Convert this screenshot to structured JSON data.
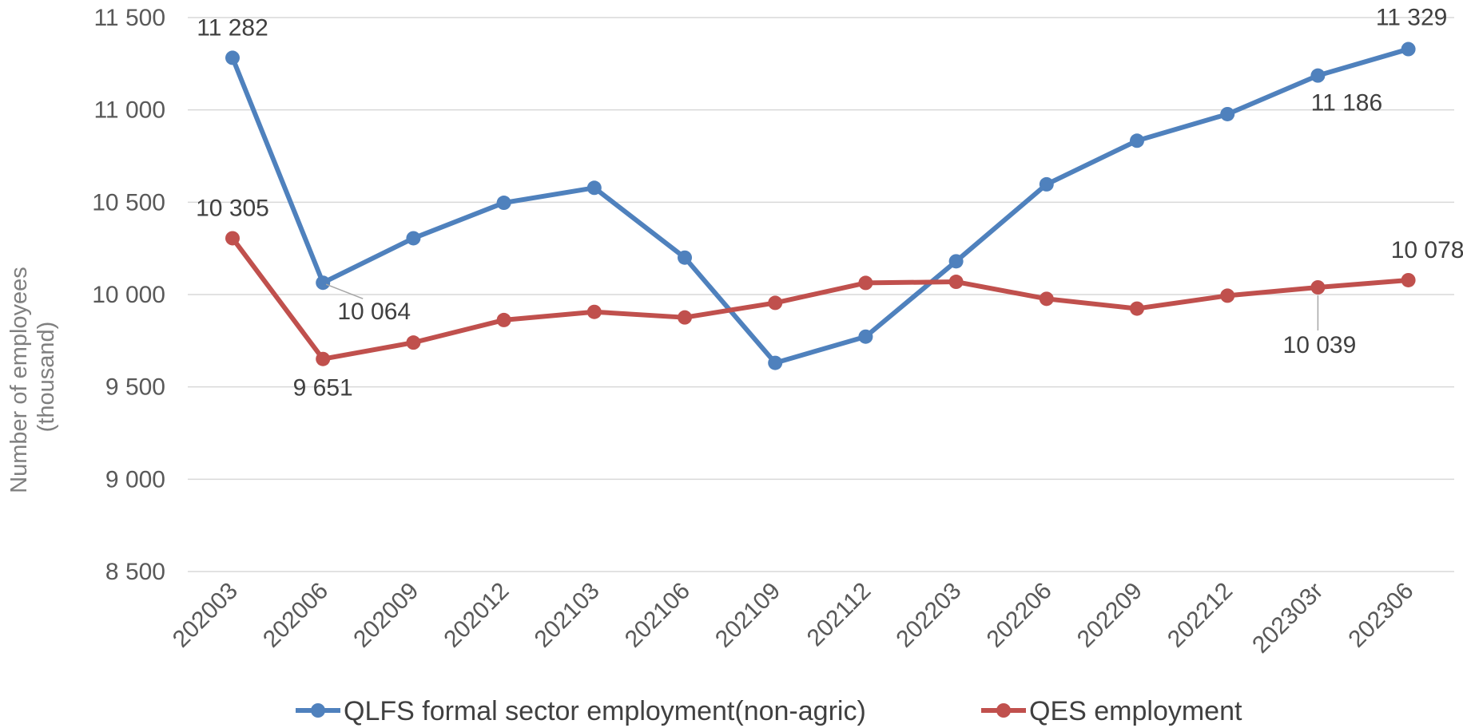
{
  "chart_data": {
    "type": "line",
    "ylabel_lines": [
      "Number of employees",
      "(thousand)"
    ],
    "ylim": [
      8500,
      11500
    ],
    "yticks": [
      8500,
      9000,
      9500,
      10000,
      10500,
      11000,
      11500
    ],
    "ytick_labels": [
      "8 500",
      "9 000",
      "9 500",
      "10 000",
      "10 500",
      "11 000",
      "11 500"
    ],
    "grid": "horizontal",
    "legend": "bottom",
    "categories": [
      "202003",
      "202006",
      "202009",
      "202012",
      "202103",
      "202106",
      "202109",
      "202112",
      "202203",
      "202206",
      "202209",
      "202212",
      "202303r",
      "202306"
    ],
    "series": [
      {
        "name": "QLFS formal sector employment(non-agric)",
        "color": "#4F81BD",
        "values": [
          11282,
          10064,
          10305,
          10497,
          10578,
          10200,
          9630,
          9772,
          10180,
          10597,
          10833,
          10977,
          11186,
          11329
        ],
        "labels": [
          {
            "index": 0,
            "text": "11 282"
          },
          {
            "index": 1,
            "text": "10 064"
          },
          {
            "index": 12,
            "text": "11 186"
          },
          {
            "index": 13,
            "text": "11 329"
          }
        ]
      },
      {
        "name": "QES employment",
        "color": "#C0504D",
        "values": [
          10305,
          9651,
          9740,
          9862,
          9906,
          9876,
          9955,
          10063,
          10069,
          9977,
          9924,
          9994,
          10039,
          10078
        ],
        "labels": [
          {
            "index": 0,
            "text": "10 305"
          },
          {
            "index": 1,
            "text": "9 651"
          },
          {
            "index": 12,
            "text": "10 039"
          },
          {
            "index": 13,
            "text": "10 078"
          }
        ]
      }
    ]
  }
}
